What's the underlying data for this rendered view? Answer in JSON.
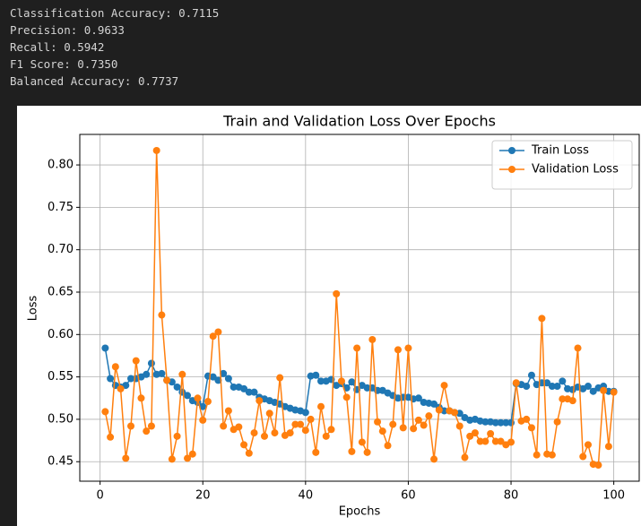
{
  "output_lines": [
    "Classification Accuracy: 0.7115",
    "Precision: 0.9633",
    "Recall: 0.5942",
    "F1 Score: 0.7350",
    "Balanced Accuracy: 0.7737"
  ],
  "chart_data": {
    "type": "line",
    "title": "Train and Validation Loss Over Epochs",
    "x_label": "Epochs",
    "y_label": "Loss",
    "x": [
      1,
      2,
      3,
      4,
      5,
      6,
      7,
      8,
      9,
      10,
      11,
      12,
      13,
      14,
      15,
      16,
      17,
      18,
      19,
      20,
      21,
      22,
      23,
      24,
      25,
      26,
      27,
      28,
      29,
      30,
      31,
      32,
      33,
      34,
      35,
      36,
      37,
      38,
      39,
      40,
      41,
      42,
      43,
      44,
      45,
      46,
      47,
      48,
      49,
      50,
      51,
      52,
      53,
      54,
      55,
      56,
      57,
      58,
      59,
      60,
      61,
      62,
      63,
      64,
      65,
      66,
      67,
      68,
      69,
      70,
      71,
      72,
      73,
      74,
      75,
      76,
      77,
      78,
      79,
      80,
      81,
      82,
      83,
      84,
      85,
      86,
      87,
      88,
      89,
      90,
      91,
      92,
      93,
      94,
      95,
      96,
      97,
      98,
      99,
      100
    ],
    "series": [
      {
        "name": "Train Loss",
        "color": "#1f77b4",
        "values": [
          0.584,
          0.548,
          0.54,
          0.538,
          0.54,
          0.548,
          0.548,
          0.55,
          0.553,
          0.566,
          0.553,
          0.554,
          0.546,
          0.544,
          0.538,
          0.532,
          0.528,
          0.522,
          0.52,
          0.515,
          0.551,
          0.55,
          0.546,
          0.554,
          0.548,
          0.538,
          0.538,
          0.536,
          0.532,
          0.532,
          0.526,
          0.524,
          0.522,
          0.52,
          0.518,
          0.515,
          0.513,
          0.511,
          0.51,
          0.508,
          0.551,
          0.552,
          0.545,
          0.545,
          0.547,
          0.54,
          0.542,
          0.537,
          0.544,
          0.535,
          0.54,
          0.537,
          0.537,
          0.534,
          0.534,
          0.531,
          0.528,
          0.525,
          0.526,
          0.526,
          0.524,
          0.525,
          0.52,
          0.519,
          0.518,
          0.514,
          0.51,
          0.51,
          0.508,
          0.507,
          0.502,
          0.499,
          0.5,
          0.498,
          0.497,
          0.497,
          0.496,
          0.496,
          0.496,
          0.496,
          0.542,
          0.541,
          0.539,
          0.552,
          0.541,
          0.543,
          0.543,
          0.539,
          0.539,
          0.545,
          0.536,
          0.535,
          0.538,
          0.536,
          0.539,
          0.533,
          0.537,
          0.539,
          0.533,
          0.533
        ]
      },
      {
        "name": "Validation Loss",
        "color": "#ff7f0e",
        "values": [
          0.509,
          0.479,
          0.562,
          0.536,
          0.454,
          0.492,
          0.569,
          0.525,
          0.486,
          0.492,
          0.817,
          0.623,
          0.546,
          0.453,
          0.48,
          0.553,
          0.454,
          0.459,
          0.525,
          0.499,
          0.521,
          0.598,
          0.603,
          0.492,
          0.51,
          0.488,
          0.491,
          0.47,
          0.46,
          0.484,
          0.522,
          0.48,
          0.507,
          0.484,
          0.549,
          0.481,
          0.484,
          0.494,
          0.494,
          0.487,
          0.5,
          0.461,
          0.515,
          0.48,
          0.488,
          0.648,
          0.545,
          0.526,
          0.462,
          0.584,
          0.473,
          0.461,
          0.594,
          0.497,
          0.486,
          0.469,
          0.494,
          0.582,
          0.49,
          0.584,
          0.489,
          0.499,
          0.493,
          0.504,
          0.453,
          0.511,
          0.54,
          0.51,
          0.508,
          0.492,
          0.455,
          0.48,
          0.484,
          0.474,
          0.474,
          0.483,
          0.474,
          0.474,
          0.47,
          0.473,
          0.543,
          0.498,
          0.5,
          0.49,
          0.458,
          0.619,
          0.459,
          0.458,
          0.497,
          0.524,
          0.524,
          0.522,
          0.584,
          0.456,
          0.47,
          0.447,
          0.446,
          0.534,
          0.468,
          0.532
        ]
      }
    ],
    "xlim": [
      -3.95,
      104.95
    ],
    "xticks": [
      0,
      20,
      40,
      60,
      80,
      100
    ],
    "ylim": [
      0.427,
      0.836
    ],
    "yticks": [
      0.45,
      {
        "value": 0.5,
        "label": "0.50"
      },
      0.55,
      {
        "value": 0.6,
        "label": "0.60"
      },
      0.65,
      {
        "value": 0.7,
        "label": "0.70"
      },
      0.75,
      {
        "value": 0.8,
        "label": "0.80"
      }
    ],
    "grid": true,
    "legend": "upper right"
  }
}
